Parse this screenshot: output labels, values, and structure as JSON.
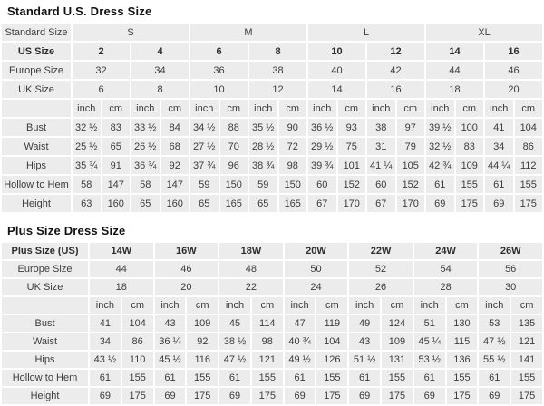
{
  "page_title": "Dress size chart",
  "chart_data": [
    {
      "type": "table",
      "name": "standard-us-dress-size",
      "title": "Standard U.S. Dress Size",
      "label_col_width": 76,
      "data_cols": 16,
      "unit_labels": [
        "inch",
        "cm"
      ],
      "rows": [
        {
          "label": "Standard Size",
          "colspan": 4,
          "bold": false,
          "values": [
            "S",
            "M",
            "L",
            "XL"
          ]
        },
        {
          "label": "US Size",
          "colspan": 2,
          "bold": true,
          "values": [
            "2",
            "4",
            "6",
            "8",
            "10",
            "12",
            "14",
            "16"
          ]
        },
        {
          "label": "Europe Size",
          "colspan": 2,
          "bold": false,
          "values": [
            "32",
            "34",
            "36",
            "38",
            "40",
            "42",
            "44",
            "46"
          ]
        },
        {
          "label": "UK Size",
          "colspan": 2,
          "bold": false,
          "values": [
            "6",
            "8",
            "10",
            "12",
            "14",
            "16",
            "18",
            "20"
          ]
        },
        {
          "label": "",
          "colspan": 1,
          "bold": false,
          "values": [
            "inch",
            "cm",
            "inch",
            "cm",
            "inch",
            "cm",
            "inch",
            "cm",
            "inch",
            "cm",
            "inch",
            "cm",
            "inch",
            "cm",
            "inch",
            "cm"
          ]
        },
        {
          "label": "Bust",
          "colspan": 1,
          "bold": false,
          "values": [
            "32 ½",
            "83",
            "33 ½",
            "84",
            "34 ½",
            "88",
            "35 ½",
            "90",
            "36 ½",
            "93",
            "38",
            "97",
            "39 ½",
            "100",
            "41",
            "104"
          ]
        },
        {
          "label": "Waist",
          "colspan": 1,
          "bold": false,
          "values": [
            "25 ½",
            "65",
            "26 ½",
            "68",
            "27 ½",
            "70",
            "28 ½",
            "72",
            "29 ½",
            "75",
            "31",
            "79",
            "32 ½",
            "83",
            "34",
            "86"
          ]
        },
        {
          "label": "Hips",
          "colspan": 1,
          "bold": false,
          "values": [
            "35 ¾",
            "91",
            "36 ¾",
            "92",
            "37 ¾",
            "96",
            "38 ¾",
            "98",
            "39 ¾",
            "101",
            "41 ¼",
            "105",
            "42 ¾",
            "109",
            "44 ¼",
            "112"
          ]
        },
        {
          "label": "Hollow to Hem",
          "colspan": 1,
          "bold": false,
          "values": [
            "58",
            "147",
            "58",
            "147",
            "59",
            "150",
            "59",
            "150",
            "60",
            "152",
            "60",
            "152",
            "61",
            "155",
            "61",
            "155"
          ]
        },
        {
          "label": "Height",
          "colspan": 1,
          "bold": false,
          "values": [
            "63",
            "160",
            "65",
            "160",
            "65",
            "165",
            "65",
            "165",
            "67",
            "170",
            "67",
            "170",
            "69",
            "175",
            "69",
            "175"
          ]
        }
      ]
    },
    {
      "type": "table",
      "name": "plus-size-dress-size",
      "title": "Plus Size Dress Size",
      "label_col_width": 95,
      "data_cols": 14,
      "unit_labels": [
        "inch",
        "cm"
      ],
      "rows": [
        {
          "label": "Plus Size (US)",
          "colspan": 2,
          "bold": true,
          "values": [
            "14W",
            "16W",
            "18W",
            "20W",
            "22W",
            "24W",
            "26W"
          ]
        },
        {
          "label": "Europe Size",
          "colspan": 2,
          "bold": false,
          "values": [
            "44",
            "46",
            "48",
            "50",
            "52",
            "54",
            "56"
          ]
        },
        {
          "label": "UK Size",
          "colspan": 2,
          "bold": false,
          "values": [
            "18",
            "20",
            "22",
            "24",
            "26",
            "28",
            "30"
          ]
        },
        {
          "label": "",
          "colspan": 1,
          "bold": false,
          "values": [
            "inch",
            "cm",
            "inch",
            "cm",
            "inch",
            "cm",
            "inch",
            "cm",
            "inch",
            "cm",
            "inch",
            "cm",
            "inch",
            "cm"
          ]
        },
        {
          "label": "Bust",
          "colspan": 1,
          "bold": false,
          "values": [
            "41",
            "104",
            "43",
            "109",
            "45",
            "114",
            "47",
            "119",
            "49",
            "124",
            "51",
            "130",
            "53",
            "135"
          ]
        },
        {
          "label": "Waist",
          "colspan": 1,
          "bold": false,
          "values": [
            "34",
            "86",
            "36 ¼",
            "92",
            "38 ½",
            "98",
            "40 ¾",
            "104",
            "43",
            "109",
            "45 ¼",
            "115",
            "47 ½",
            "121"
          ]
        },
        {
          "label": "Hips",
          "colspan": 1,
          "bold": false,
          "values": [
            "43 ½",
            "110",
            "45 ½",
            "116",
            "47 ½",
            "121",
            "49 ½",
            "126",
            "51 ½",
            "131",
            "53 ½",
            "136",
            "55 ½",
            "141"
          ]
        },
        {
          "label": "Hollow to Hem",
          "colspan": 1,
          "bold": false,
          "values": [
            "61",
            "155",
            "61",
            "155",
            "61",
            "155",
            "61",
            "155",
            "61",
            "155",
            "61",
            "155",
            "61",
            "155"
          ]
        },
        {
          "label": "Height",
          "colspan": 1,
          "bold": false,
          "values": [
            "69",
            "175",
            "69",
            "175",
            "69",
            "175",
            "69",
            "175",
            "69",
            "175",
            "69",
            "175",
            "69",
            "175"
          ]
        }
      ]
    }
  ],
  "colors": {
    "cell_background": "#ececec",
    "grid_gap": "#ffffff",
    "text": "#3c3c3c",
    "title_text": "#111111"
  }
}
